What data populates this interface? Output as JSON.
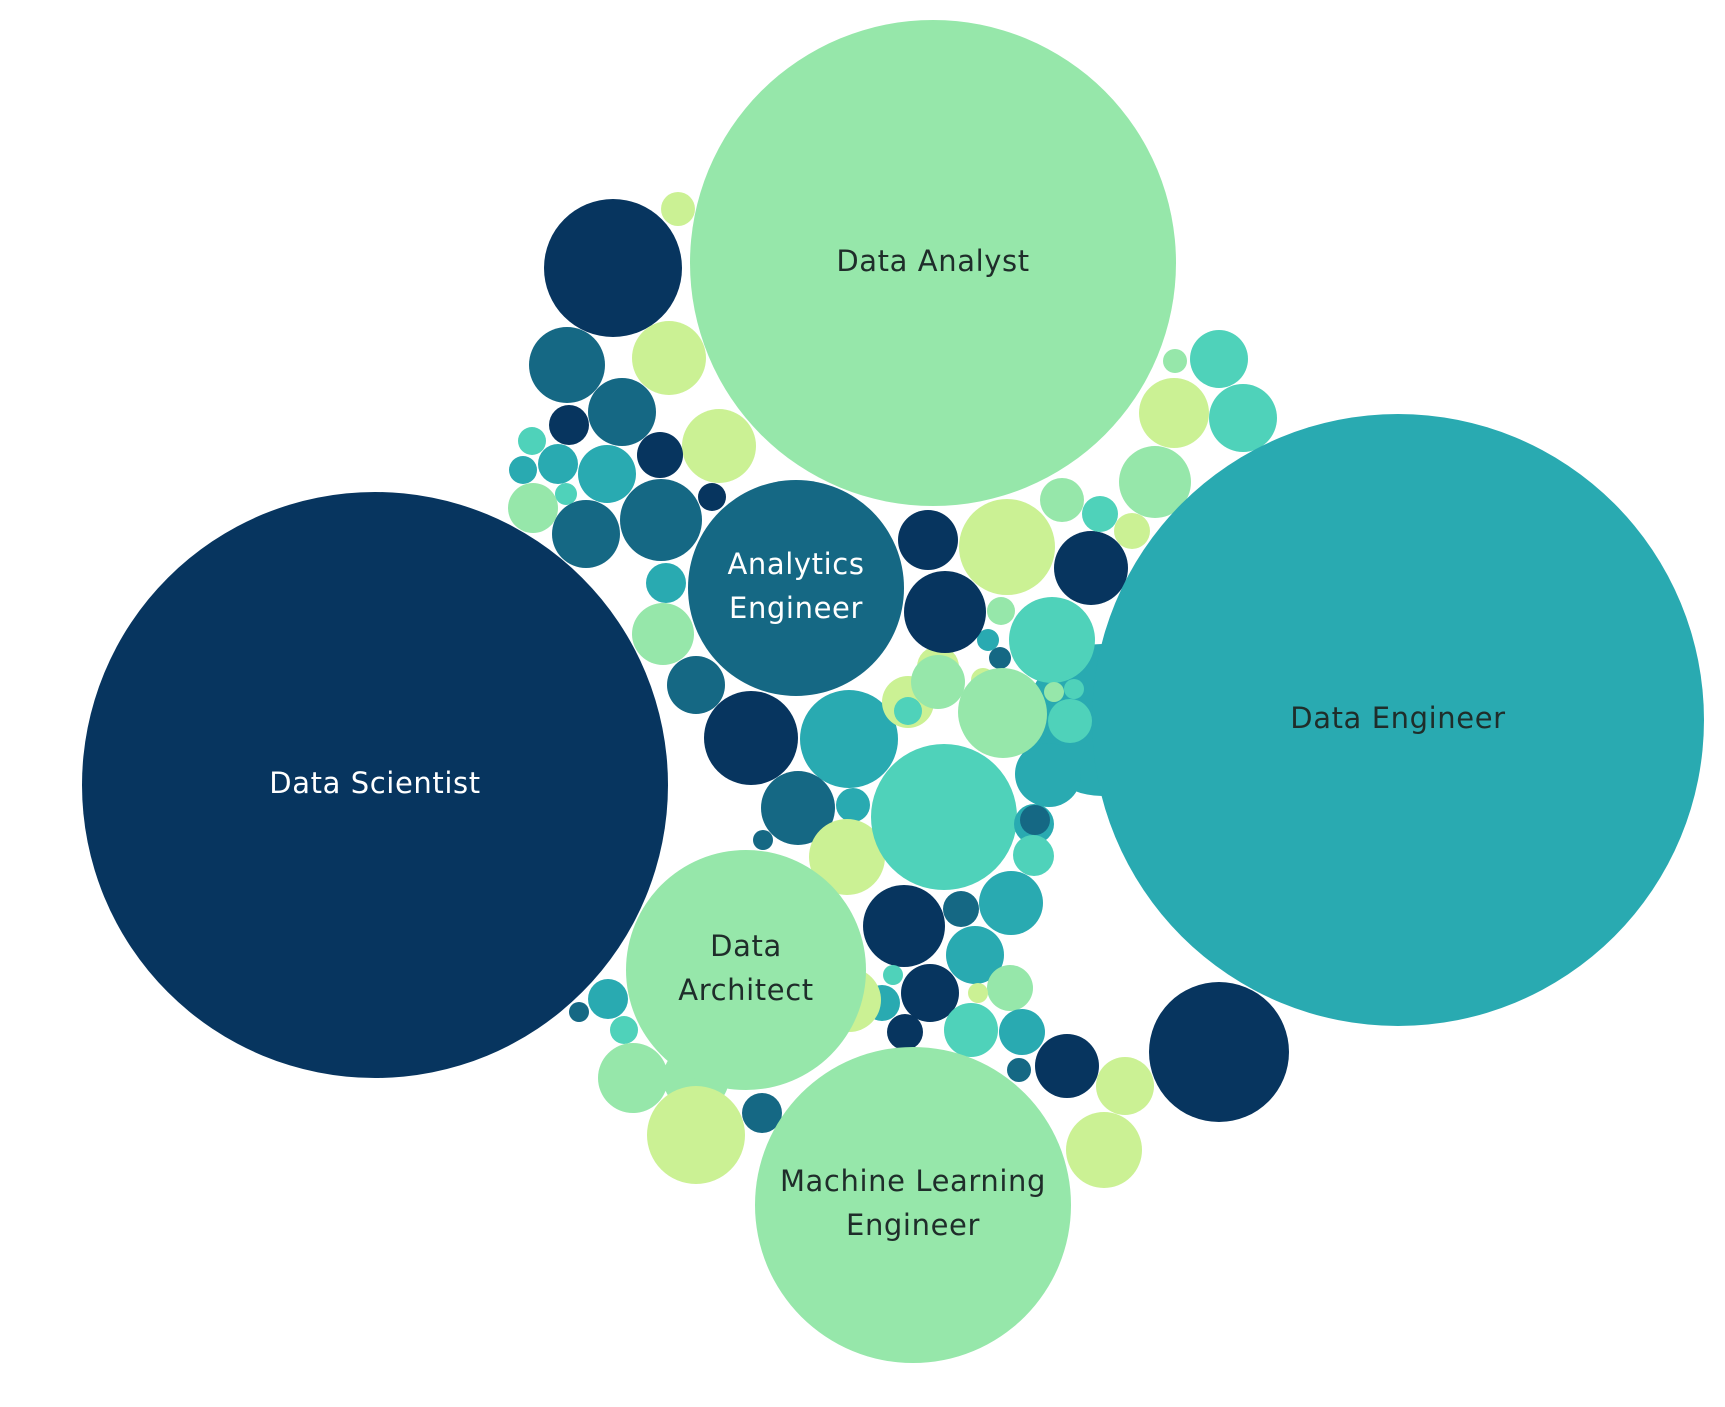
{
  "chart_data": {
    "type": "bubble",
    "title": "",
    "colors": {
      "navy": "#07355F",
      "petrol": "#156884",
      "teal": "#29AAB1",
      "aqua": "#4FD2BA",
      "mint": "#96E7AA",
      "lime": "#CBF194"
    },
    "labeled_bubbles": [
      {
        "label": "Data Scientist",
        "lines": [
          "Data Scientist"
        ],
        "relative_size": 1.0,
        "color": "navy",
        "text_color": "#ffffff"
      },
      {
        "label": "Data Engineer",
        "lines": [
          "Data Engineer"
        ],
        "relative_size": 1.1,
        "color": "teal",
        "text_color": "#1f2d2a"
      },
      {
        "label": "Data Analyst",
        "lines": [
          "Data Analyst"
        ],
        "relative_size": 0.69,
        "color": "mint",
        "text_color": "#1f2d2a"
      },
      {
        "label": "Analytics Engineer",
        "lines": [
          "Analytics",
          "Engineer"
        ],
        "relative_size": 0.14,
        "color": "petrol",
        "text_color": "#ffffff"
      },
      {
        "label": "Data Architect",
        "lines": [
          "Data",
          "Architect"
        ],
        "relative_size": 0.17,
        "color": "mint",
        "text_color": "#1f2d2a"
      },
      {
        "label": "Machine Learning Engineer",
        "lines": [
          "Machine Learning",
          "Engineer"
        ],
        "relative_size": 0.29,
        "color": "mint",
        "text_color": "#1f2d2a"
      }
    ]
  }
}
